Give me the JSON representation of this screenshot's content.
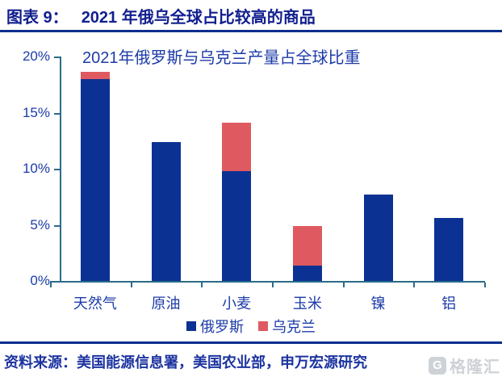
{
  "header": {
    "label": "图表 9：",
    "title": "2021 年俄乌全球占比较高的商品"
  },
  "chart_data": {
    "type": "bar",
    "stacked": true,
    "title": "2021年俄罗斯与乌克兰产量占全球比重",
    "categories": [
      "天然气",
      "原油",
      "小麦",
      "玉米",
      "镍",
      "铝"
    ],
    "series": [
      {
        "name": "俄罗斯",
        "color": "#0b3193",
        "values": [
          18.0,
          12.4,
          9.8,
          1.4,
          7.7,
          5.6
        ]
      },
      {
        "name": "乌克兰",
        "color": "#df5a60",
        "values": [
          0.6,
          0,
          4.3,
          3.5,
          0,
          0
        ]
      }
    ],
    "xlabel": "",
    "ylabel": "",
    "ylim": [
      0,
      20
    ],
    "yticks": [
      0,
      5,
      10,
      15,
      20
    ],
    "ytick_labels": [
      "0%",
      "5%",
      "10%",
      "15%",
      "20%"
    ],
    "grid": false,
    "legend_position": "bottom",
    "colors": {
      "axis": "#2b6b89",
      "tick_label": "#1c3ba8",
      "title": "#1c3ba8"
    }
  },
  "footer": {
    "source": "资料来源：美国能源信息署，美国农业部，申万宏源研究"
  },
  "watermark": {
    "icon": "G",
    "text": "格隆汇"
  }
}
